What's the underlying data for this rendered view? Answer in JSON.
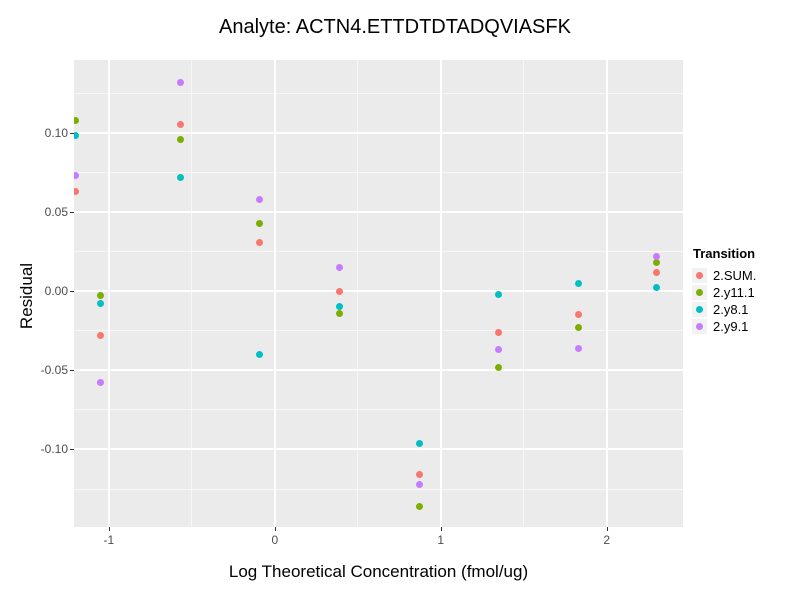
{
  "title": "Analyte: ACTN4.ETTDTDTADQVIASFK",
  "chart_data": {
    "type": "scatter",
    "title": "Analyte: ACTN4.ETTDTDTADQVIASFK",
    "xlabel": "Log Theoretical Concentration (fmol/ug)",
    "ylabel": "Residual",
    "xlim": [
      -1.21,
      2.46
    ],
    "ylim": [
      -0.149,
      0.146
    ],
    "grid": true,
    "legend_title": "Transition",
    "legend_position": "right",
    "x_ticks": [
      {
        "v": -1,
        "label": "-1"
      },
      {
        "v": 0,
        "label": "0"
      },
      {
        "v": 1,
        "label": "1"
      },
      {
        "v": 2,
        "label": "2"
      }
    ],
    "x_minor_ticks": [
      -0.5,
      0.5,
      1.5
    ],
    "y_ticks": [
      {
        "v": 0.1,
        "label": "0.10"
      },
      {
        "v": 0.05,
        "label": "0.05"
      },
      {
        "v": 0.0,
        "label": "0.00"
      },
      {
        "v": -0.05,
        "label": "-0.05"
      },
      {
        "v": -0.1,
        "label": "-0.10"
      }
    ],
    "y_minor_ticks": [
      0.125,
      0.075,
      0.025,
      -0.025,
      -0.075,
      -0.125
    ],
    "x": [
      -1.2,
      -1.05,
      -0.57,
      -0.09,
      0.39,
      0.87,
      1.35,
      1.83,
      2.3
    ],
    "series": [
      {
        "name": "2.SUM.",
        "color": "#F8766D",
        "values": [
          0.063,
          -0.028,
          0.105,
          0.031,
          0.0,
          -0.116,
          -0.026,
          -0.015,
          0.012
        ]
      },
      {
        "name": "2.y11.1",
        "color": "#7CAE00",
        "values": [
          0.108,
          -0.003,
          0.096,
          0.043,
          -0.014,
          -0.136,
          -0.048,
          -0.023,
          0.018
        ]
      },
      {
        "name": "2.y8.1",
        "color": "#00BFC4",
        "values": [
          0.098,
          -0.008,
          0.072,
          -0.04,
          -0.01,
          -0.096,
          -0.002,
          0.005,
          0.002
        ]
      },
      {
        "name": "2.y9.1",
        "color": "#C77CFF",
        "values": [
          0.073,
          -0.058,
          0.132,
          0.058,
          0.015,
          -0.122,
          -0.037,
          -0.036,
          0.022
        ]
      }
    ],
    "colors": {
      "panel_bg": "#EBEBEB",
      "gridline": "#FFFFFF",
      "tick_label": "#4D4D4D",
      "text": "#000000",
      "legend_key_bg": "#F2F2F2"
    }
  }
}
